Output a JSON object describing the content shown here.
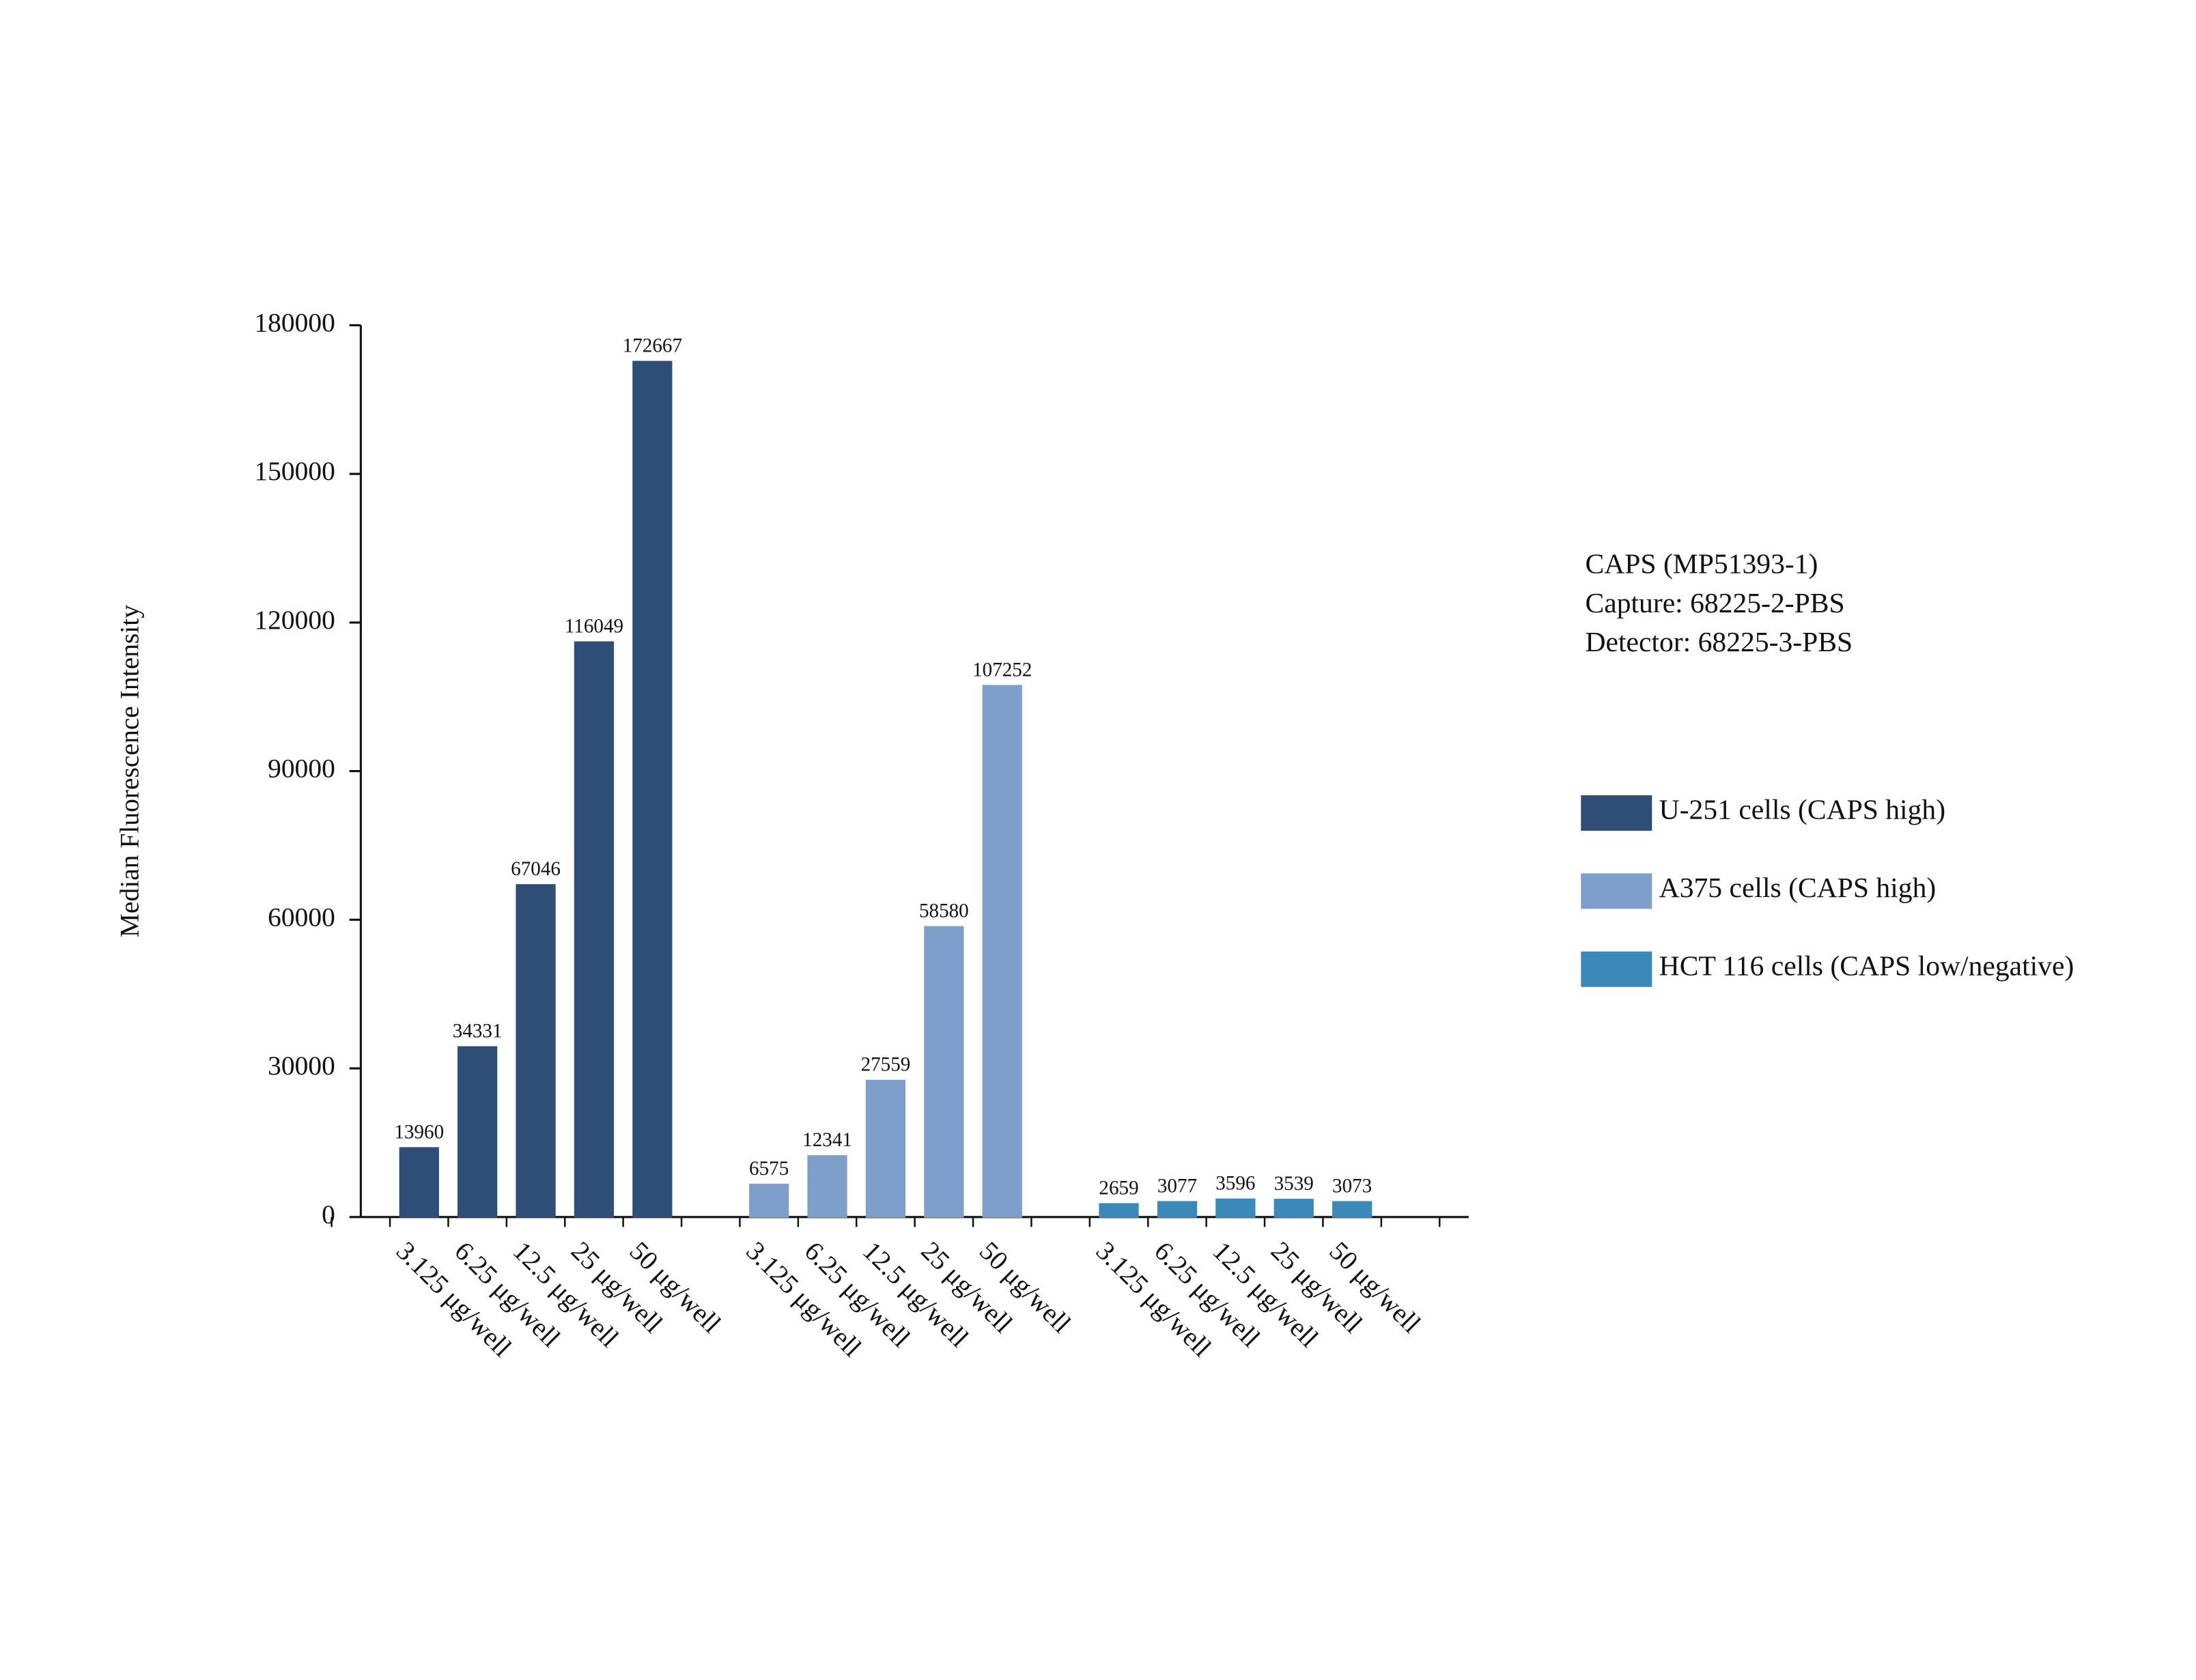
{
  "chart_data": {
    "type": "bar",
    "y_label": "Median Fluorescence Intensity",
    "annotations": [
      "CAPS (MP51393-1)",
      "Capture: 68225-2-PBS",
      "Detector: 68225-3-PBS"
    ],
    "categories": [
      "3.125 μg/well",
      "6.25 μg/well",
      "12.5 μg/well",
      "25 μg/well",
      "50 μg/well",
      "3.125 μg/well",
      "6.25 μg/well",
      "12.5 μg/well",
      "25 μg/well",
      "50 μg/well",
      "3.125 μg/well",
      "6.25 μg/well",
      "12.5 μg/well",
      "25 μg/well",
      "50 μg/well"
    ],
    "series": [
      {
        "name": "U-251 cells (CAPS high)",
        "color": "#2e4e78",
        "values": [
          13960,
          34331,
          67046,
          116049,
          172667,
          null,
          null,
          null,
          null,
          null,
          null,
          null,
          null,
          null,
          null
        ]
      },
      {
        "name": "A375 cells (CAPS high)",
        "color": "#7f9fcb",
        "values": [
          null,
          null,
          null,
          null,
          null,
          6575,
          12341,
          27559,
          58580,
          107252,
          null,
          null,
          null,
          null,
          null
        ]
      },
      {
        "name": "HCT 116 cells (CAPS low/negative)",
        "color": "#3a89b8",
        "values": [
          null,
          null,
          null,
          null,
          null,
          null,
          null,
          null,
          null,
          null,
          2659,
          3077,
          3596,
          3539,
          3073
        ]
      }
    ],
    "ylim": [
      0,
      180000
    ],
    "yticks": [
      0,
      30000,
      60000,
      90000,
      120000,
      150000,
      180000
    ],
    "grid": false,
    "legend": "right"
  }
}
